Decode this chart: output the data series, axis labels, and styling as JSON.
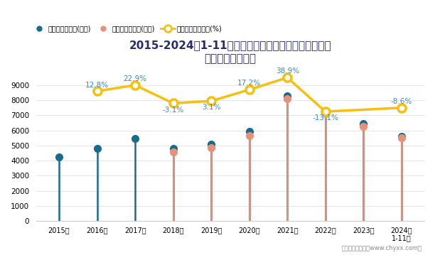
{
  "title_line1": "2015-2024年1-11月计算机、通信和其他电子设备制造",
  "title_line2": "业企业利润统计图",
  "years": [
    "2015年",
    "2016年",
    "2017年",
    "2018年",
    "2019年",
    "2020年",
    "2021年",
    "2022年",
    "2023年",
    "2024年\n1-11月"
  ],
  "profit_total": [
    4250,
    4800,
    5450,
    4820,
    5080,
    5950,
    8300,
    7200,
    6450,
    5620
  ],
  "profit_operating": [
    null,
    null,
    null,
    4550,
    4870,
    5650,
    8100,
    7100,
    6250,
    5500
  ],
  "growth_rate_labels": [
    null,
    "12.8%",
    "22.9%",
    "-3.1%",
    "3.1%",
    "17.2%",
    "38.9%",
    "-13.1%",
    null,
    "-8.6%"
  ],
  "growth_rate_y_values": [
    null,
    8600,
    9000,
    7800,
    7950,
    8700,
    9500,
    7250,
    null,
    7500
  ],
  "label_above": [
    null,
    true,
    true,
    false,
    false,
    true,
    true,
    false,
    null,
    true
  ],
  "ylim_left": [
    0,
    10000
  ],
  "yticks_left": [
    0,
    1000,
    2000,
    3000,
    4000,
    5000,
    6000,
    7000,
    8000,
    9000
  ],
  "color_profit_total": "#1a6b8a",
  "color_profit_operating": "#e8917a",
  "color_growth": "#f5c010",
  "color_growth_label": "#3a8abf",
  "legend_labels": [
    "利润总额累计值(亿元)",
    "营业利润累计值(亿元)",
    "利润总额累计增长(%)"
  ],
  "footer": "制图：智研咨询（www.chyxx.com）"
}
